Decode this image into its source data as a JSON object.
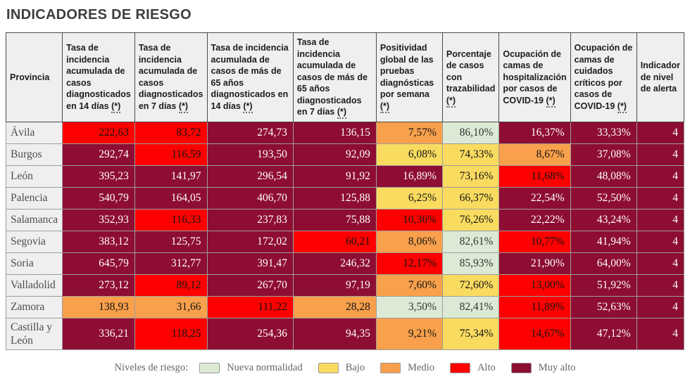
{
  "title": "INDICADORES DE RIESGO",
  "colors": {
    "nueva_normalidad": "#DCEAD5",
    "bajo": "#F9DB60",
    "medio": "#F8A04B",
    "alto": "#FE0000",
    "muy_alto": "#8E0D32",
    "header_bg": "#efefef",
    "grid_line": "#9d9d9d"
  },
  "legend": {
    "label": "Niveles de riesgo:",
    "items": [
      {
        "label": "Nueva normalidad",
        "level": "nueva_normalidad"
      },
      {
        "label": "Bajo",
        "level": "bajo"
      },
      {
        "label": "Medio",
        "level": "medio"
      },
      {
        "label": "Alto",
        "level": "alto"
      },
      {
        "label": "Muy alto",
        "level": "muy_alto"
      }
    ]
  },
  "chart_data": {
    "type": "table",
    "title": "INDICADORES DE RIESGO",
    "columns": [
      "Provincia",
      "Tasa de incidencia acumulada de casos diagnosticados en 14 días (*)",
      "Tasa de incidencia acumulada de casos diagnosticados en 7 días (*)",
      "Tasa de incidencia acumulada de casos de más de 65 años diagnosticados en 14 días (*)",
      "Tasa de incidencia acumulada de casos de más de 65 años diagnosticados en 7 días (*)",
      "Positividad global de las pruebas diagnósticas por semana (*)",
      "Porcentaje de casos con trazabilidad (*)",
      "Ocupación de camas de hospitalización por casos de COVID-19 (*)",
      "Ocupación de camas de cuidados críticos por casos de COVID-19 (*)",
      "Indicador de nivel de alerta"
    ],
    "rows": [
      {
        "province": "Ávila",
        "values": [
          "222,63",
          "83,72",
          "274,73",
          "136,15",
          "7,57%",
          "86,10%",
          "16,37%",
          "33,33%",
          "4"
        ],
        "levels": [
          "alto",
          "alto",
          "muy_alto",
          "muy_alto",
          "medio",
          "nueva_normalidad",
          "muy_alto",
          "muy_alto",
          "muy_alto"
        ]
      },
      {
        "province": "Burgos",
        "values": [
          "292,74",
          "116,59",
          "193,50",
          "92,09",
          "6,08%",
          "74,33%",
          "8,67%",
          "37,08%",
          "4"
        ],
        "levels": [
          "muy_alto",
          "alto",
          "muy_alto",
          "muy_alto",
          "bajo",
          "bajo",
          "medio",
          "muy_alto",
          "muy_alto"
        ]
      },
      {
        "province": "León",
        "values": [
          "395,23",
          "141,97",
          "296,54",
          "91,92",
          "16,89%",
          "73,16%",
          "11,68%",
          "48,08%",
          "4"
        ],
        "levels": [
          "muy_alto",
          "muy_alto",
          "muy_alto",
          "muy_alto",
          "muy_alto",
          "bajo",
          "alto",
          "muy_alto",
          "muy_alto"
        ]
      },
      {
        "province": "Palencia",
        "values": [
          "540,79",
          "164,05",
          "406,70",
          "125,88",
          "6,25%",
          "66,37%",
          "22,54%",
          "52,50%",
          "4"
        ],
        "levels": [
          "muy_alto",
          "muy_alto",
          "muy_alto",
          "muy_alto",
          "bajo",
          "bajo",
          "muy_alto",
          "muy_alto",
          "muy_alto"
        ]
      },
      {
        "province": "Salamanca",
        "values": [
          "352,93",
          "116,33",
          "237,83",
          "75,88",
          "10,36%",
          "76,26%",
          "22,22%",
          "43,24%",
          "4"
        ],
        "levels": [
          "muy_alto",
          "alto",
          "muy_alto",
          "muy_alto",
          "alto",
          "bajo",
          "muy_alto",
          "muy_alto",
          "muy_alto"
        ]
      },
      {
        "province": "Segovia",
        "values": [
          "383,12",
          "125,75",
          "172,02",
          "60,21",
          "8,06%",
          "82,61%",
          "10,77%",
          "41,94%",
          "4"
        ],
        "levels": [
          "muy_alto",
          "muy_alto",
          "muy_alto",
          "alto",
          "medio",
          "nueva_normalidad",
          "alto",
          "muy_alto",
          "muy_alto"
        ]
      },
      {
        "province": "Soria",
        "values": [
          "645,79",
          "312,77",
          "391,47",
          "246,32",
          "12,17%",
          "85,93%",
          "21,90%",
          "64,00%",
          "4"
        ],
        "levels": [
          "muy_alto",
          "muy_alto",
          "muy_alto",
          "muy_alto",
          "alto",
          "nueva_normalidad",
          "muy_alto",
          "muy_alto",
          "muy_alto"
        ]
      },
      {
        "province": "Valladolid",
        "values": [
          "273,12",
          "89,12",
          "267,70",
          "97,19",
          "7,60%",
          "72,60%",
          "13,00%",
          "51,92%",
          "4"
        ],
        "levels": [
          "muy_alto",
          "alto",
          "muy_alto",
          "muy_alto",
          "medio",
          "bajo",
          "alto",
          "muy_alto",
          "muy_alto"
        ]
      },
      {
        "province": "Zamora",
        "values": [
          "138,93",
          "31,66",
          "111,22",
          "28,28",
          "3,50%",
          "82,41%",
          "11,89%",
          "52,63%",
          "4"
        ],
        "levels": [
          "medio",
          "medio",
          "alto",
          "medio",
          "nueva_normalidad",
          "nueva_normalidad",
          "alto",
          "muy_alto",
          "muy_alto"
        ]
      },
      {
        "province": "Castilla y León",
        "values": [
          "336,21",
          "118,25",
          "254,36",
          "94,35",
          "9,21%",
          "75,34%",
          "14,67%",
          "47,12%",
          "4"
        ],
        "levels": [
          "muy_alto",
          "alto",
          "muy_alto",
          "muy_alto",
          "medio",
          "bajo",
          "alto",
          "muy_alto",
          "muy_alto"
        ]
      }
    ],
    "legend_position": "bottom-center",
    "legend_label": "Niveles de riesgo:",
    "risk_levels": [
      "Nueva normalidad",
      "Bajo",
      "Medio",
      "Alto",
      "Muy alto"
    ]
  }
}
